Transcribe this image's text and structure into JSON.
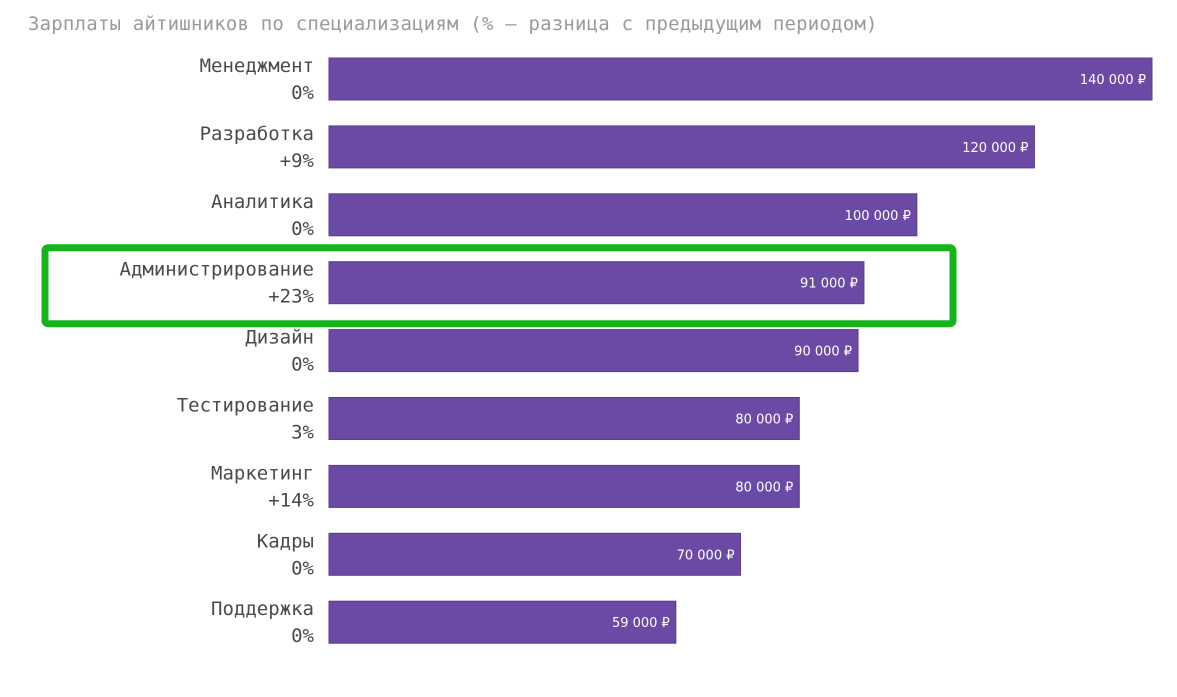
{
  "chart_data": {
    "type": "bar",
    "orientation": "horizontal",
    "title": "Зарплаты айтишников по специализациям (% — разница с предыдущим периодом)",
    "categories": [
      "Менеджмент",
      "Разработка",
      "Аналитика",
      "Администрирование",
      "Дизайн",
      "Тестирование",
      "Маркетинг",
      "Кадры",
      "Поддержка"
    ],
    "deltas": [
      "0%",
      "+9%",
      "0%",
      "+23%",
      "0%",
      "3%",
      "+14%",
      "0%",
      "0%"
    ],
    "values": [
      140000,
      120000,
      100000,
      91000,
      90000,
      80000,
      80000,
      70000,
      59000
    ],
    "value_labels": [
      "140 000 ₽",
      "120 000 ₽",
      "100 000 ₽",
      "91 000 ₽",
      "90 000 ₽",
      "80 000 ₽",
      "80 000 ₽",
      "70 000 ₽",
      "59 000 ₽"
    ],
    "xlim": [
      0,
      140000
    ],
    "grid": false,
    "legend": "none",
    "highlighted_category": "Администрирование",
    "colors": {
      "bar": "#6a4aa4",
      "highlight": "#17b31a",
      "title": "#9a9a9a",
      "label": "#4a4a4a",
      "value_text": "#ffffff"
    }
  }
}
